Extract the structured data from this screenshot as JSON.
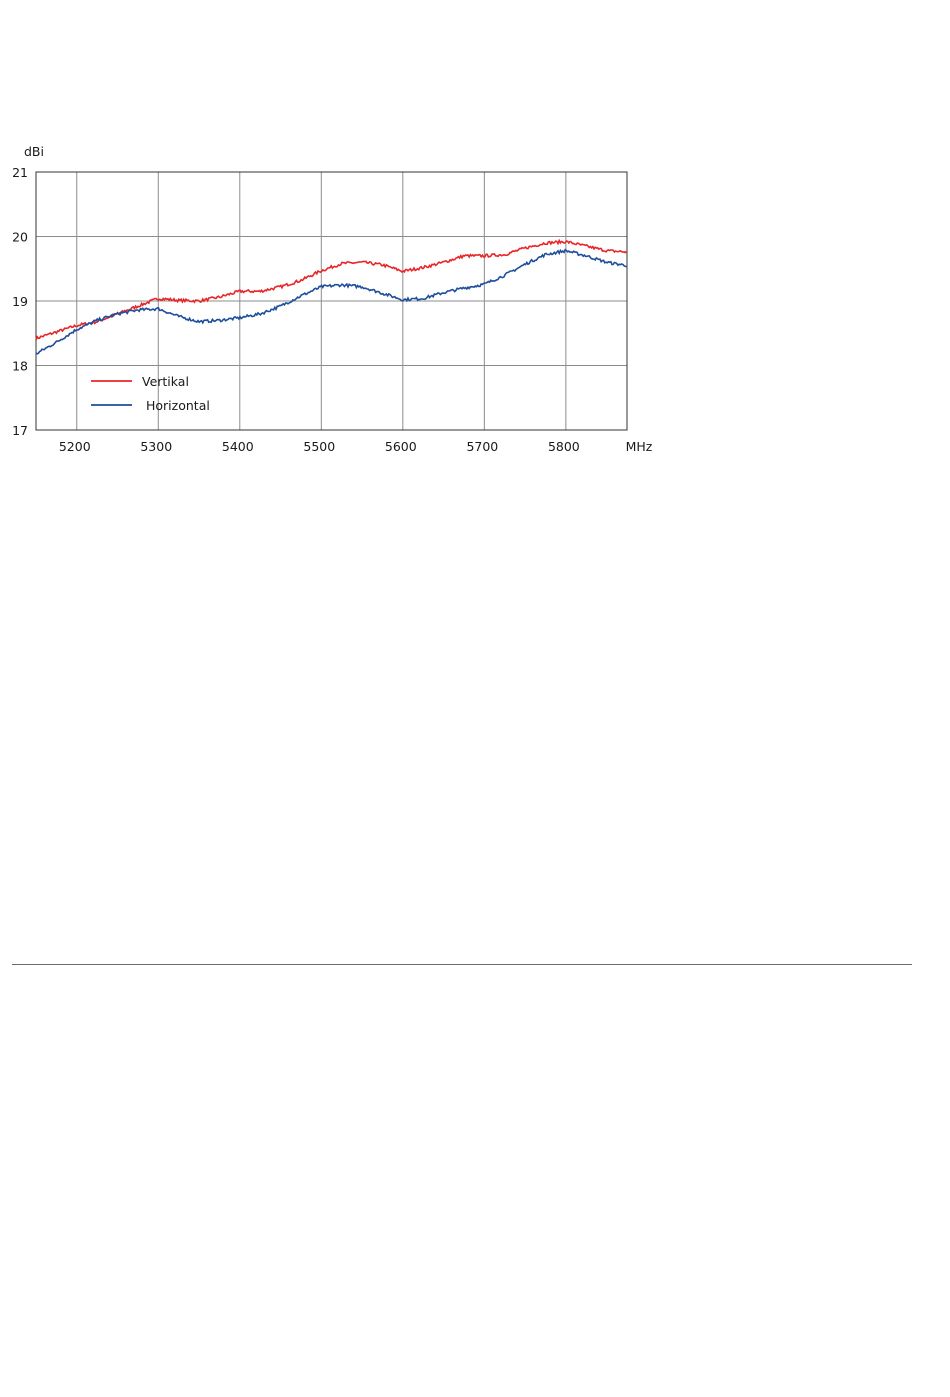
{
  "chart_data": {
    "type": "line",
    "title": "",
    "xlabel": "MHz",
    "ylabel": "dBi",
    "xlim": [
      5150,
      5875
    ],
    "ylim": [
      17,
      21
    ],
    "xticks": [
      5200,
      5300,
      5400,
      5500,
      5600,
      5700,
      5800
    ],
    "yticks": [
      17,
      18,
      19,
      20,
      21
    ],
    "grid": true,
    "legend_position": "bottom-left",
    "series": [
      {
        "name": "Vertikal",
        "color": "#e8262a",
        "points": [
          [
            5150,
            18.42
          ],
          [
            5175,
            18.52
          ],
          [
            5200,
            18.62
          ],
          [
            5225,
            18.68
          ],
          [
            5250,
            18.8
          ],
          [
            5275,
            18.92
          ],
          [
            5300,
            19.04
          ],
          [
            5325,
            19.01
          ],
          [
            5350,
            19.0
          ],
          [
            5375,
            19.06
          ],
          [
            5400,
            19.15
          ],
          [
            5425,
            19.15
          ],
          [
            5450,
            19.22
          ],
          [
            5475,
            19.32
          ],
          [
            5500,
            19.47
          ],
          [
            5525,
            19.58
          ],
          [
            5550,
            19.6
          ],
          [
            5575,
            19.56
          ],
          [
            5600,
            19.46
          ],
          [
            5625,
            19.52
          ],
          [
            5650,
            19.6
          ],
          [
            5675,
            19.7
          ],
          [
            5700,
            19.7
          ],
          [
            5725,
            19.72
          ],
          [
            5750,
            19.82
          ],
          [
            5775,
            19.9
          ],
          [
            5800,
            19.92
          ],
          [
            5825,
            19.85
          ],
          [
            5850,
            19.78
          ],
          [
            5875,
            19.76
          ]
        ]
      },
      {
        "name": "Horizontal",
        "color": "#1f4e9c",
        "points": [
          [
            5150,
            18.18
          ],
          [
            5175,
            18.36
          ],
          [
            5200,
            18.56
          ],
          [
            5225,
            18.7
          ],
          [
            5250,
            18.8
          ],
          [
            5275,
            18.86
          ],
          [
            5300,
            18.88
          ],
          [
            5325,
            18.76
          ],
          [
            5350,
            18.68
          ],
          [
            5375,
            18.7
          ],
          [
            5400,
            18.74
          ],
          [
            5425,
            18.8
          ],
          [
            5450,
            18.92
          ],
          [
            5475,
            19.08
          ],
          [
            5500,
            19.22
          ],
          [
            5525,
            19.25
          ],
          [
            5550,
            19.22
          ],
          [
            5575,
            19.12
          ],
          [
            5600,
            19.02
          ],
          [
            5625,
            19.04
          ],
          [
            5650,
            19.13
          ],
          [
            5675,
            19.2
          ],
          [
            5700,
            19.26
          ],
          [
            5725,
            19.4
          ],
          [
            5750,
            19.57
          ],
          [
            5775,
            19.72
          ],
          [
            5800,
            19.78
          ],
          [
            5825,
            19.7
          ],
          [
            5850,
            19.6
          ],
          [
            5875,
            19.55
          ]
        ]
      }
    ]
  }
}
